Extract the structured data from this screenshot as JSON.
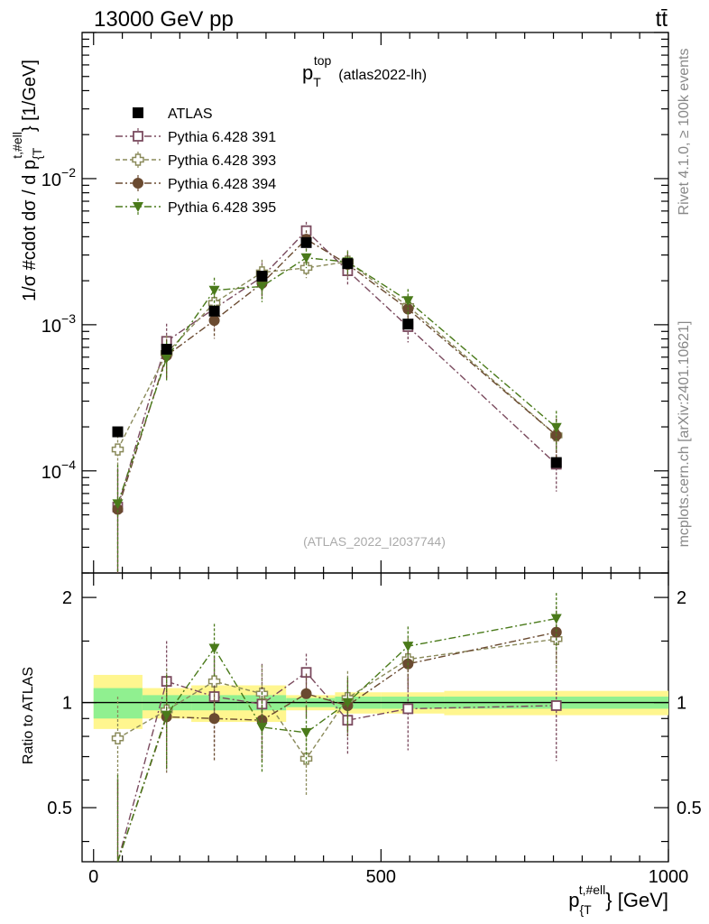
{
  "header": {
    "left": "13000 GeV pp",
    "right": "tt̄"
  },
  "side_labels": {
    "rivet": "Rivet 4.1.0, ≥ 100k events",
    "mcplots": "mcplots.cern.ch [arXiv:2401.10621]"
  },
  "chart_data": {
    "type": "scatter",
    "title_main": "p",
    "title_sup": "top",
    "title_sub": "T",
    "title_suffix": "(atlas2022-lh)",
    "watermark": "(ATLAS_2022_I2037744)",
    "ylabel": "1/σ #cdot dσ / d p",
    "ylabel_sup": "t,#ell",
    "ylabel_sub": "{T",
    "ylabel_unit": "} [1/GeV]",
    "ratio_ylabel": "Ratio to ATLAS",
    "xlabel": "p",
    "xlabel_sup": "t,#ell",
    "xlabel_sub": "{T",
    "xlabel_unit": "} [GeV]",
    "xlim": [
      -20,
      1000
    ],
    "ylim": [
      2e-05,
      0.1
    ],
    "ratio_ylim": [
      0.35,
      2.35
    ],
    "yscale": "log",
    "x_ticks": [
      "0",
      "500",
      "1000"
    ],
    "y_ticks": [
      {
        "base": "10",
        "exp": "−4",
        "value": 0.0001
      },
      {
        "base": "10",
        "exp": "−3",
        "value": 0.001
      },
      {
        "base": "10",
        "exp": "−2",
        "value": 0.01
      }
    ],
    "ratio_ticks": [
      "0.5",
      "1",
      "2"
    ],
    "bin_edges": [
      0,
      85,
      170,
      250,
      335,
      420,
      500,
      610,
      1000
    ],
    "x": [
      42,
      127,
      210,
      293,
      370,
      442,
      547,
      805
    ],
    "band_inner": [
      [
        0.9,
        1.1
      ],
      [
        0.95,
        1.05
      ],
      [
        0.95,
        1.05
      ],
      [
        0.95,
        1.05
      ],
      [
        0.97,
        1.03
      ],
      [
        0.96,
        1.04
      ],
      [
        0.96,
        1.04
      ],
      [
        0.96,
        1.04
      ]
    ],
    "band_outer": [
      [
        0.84,
        1.2
      ],
      [
        0.9,
        1.1
      ],
      [
        0.88,
        1.12
      ],
      [
        0.88,
        1.12
      ],
      [
        0.95,
        1.05
      ],
      [
        0.93,
        1.07
      ],
      [
        0.93,
        1.07
      ],
      [
        0.92,
        1.08
      ]
    ],
    "series": [
      {
        "name": "ATLAS",
        "color": "#000000",
        "marker": "filled-square",
        "style": "none",
        "values": [
          0.000185,
          0.00068,
          0.00124,
          0.00215,
          0.00365,
          0.00262,
          0.00101,
          0.000114
        ],
        "err": [
          0.08,
          0.06,
          0.06,
          0.06,
          0.05,
          0.05,
          0.06,
          0.08
        ],
        "ratio": [
          1,
          1,
          1,
          1,
          1,
          1,
          1,
          1
        ],
        "ratio_err": [
          0,
          0,
          0,
          0,
          0,
          0,
          0,
          0
        ]
      },
      {
        "name": "Pythia 6.428 391",
        "color": "#7a4a5e",
        "marker": "open-square",
        "style": "dashdot",
        "values": [
          5.65e-05,
          0.00077,
          0.00129,
          0.00212,
          0.0044,
          0.00234,
          0.00097,
          0.000111
        ],
        "err": [
          0.85,
          0.32,
          0.3,
          0.25,
          0.15,
          0.2,
          0.22,
          0.35
        ],
        "ratio": [
          0.305,
          1.15,
          1.04,
          0.99,
          1.22,
          0.89,
          0.96,
          0.98
        ],
        "ratio_err": [
          0.3,
          0.35,
          0.3,
          0.3,
          0.16,
          0.18,
          0.23,
          0.3
        ]
      },
      {
        "name": "Pythia 6.428 393",
        "color": "#8a8a5a",
        "marker": "open-cross",
        "style": "dashed",
        "values": [
          0.00014,
          0.00064,
          0.00141,
          0.00228,
          0.00245,
          0.0027,
          0.00134,
          0.000175
        ],
        "err": [
          0.25,
          0.32,
          0.25,
          0.22,
          0.15,
          0.2,
          0.2,
          0.3
        ],
        "ratio": [
          0.79,
          0.95,
          1.15,
          1.06,
          0.69,
          1.03,
          1.33,
          1.52
        ],
        "ratio_err": [
          0.25,
          0.3,
          0.25,
          0.22,
          0.15,
          0.2,
          0.2,
          0.3
        ]
      },
      {
        "name": "Pythia 6.428 394",
        "color": "#6a4a30",
        "marker": "filled-circle",
        "style": "dashdot",
        "values": [
          5.45e-05,
          0.000615,
          0.00107,
          0.00192,
          0.00385,
          0.00259,
          0.00128,
          0.000175
        ],
        "err": [
          0.85,
          0.3,
          0.25,
          0.22,
          0.15,
          0.18,
          0.2,
          0.3
        ],
        "ratio": [
          0.295,
          0.91,
          0.9,
          0.89,
          1.06,
          0.98,
          1.29,
          1.59
        ],
        "ratio_err": [
          0.3,
          0.28,
          0.22,
          0.22,
          0.15,
          0.18,
          0.2,
          0.3
        ]
      },
      {
        "name": "Pythia 6.428 395",
        "color": "#4a7a1a",
        "marker": "filled-triangle-down",
        "style": "dashdot",
        "values": [
          5.95e-05,
          0.00059,
          0.00172,
          0.00183,
          0.00287,
          0.00269,
          0.00146,
          0.000198
        ],
        "err": [
          0.85,
          0.3,
          0.22,
          0.22,
          0.15,
          0.18,
          0.2,
          0.3
        ],
        "ratio": [
          0.32,
          0.92,
          1.43,
          0.85,
          0.82,
          1.0,
          1.45,
          1.74
        ],
        "ratio_err": [
          0.3,
          0.28,
          0.25,
          0.22,
          0.15,
          0.18,
          0.2,
          0.32
        ]
      }
    ]
  }
}
